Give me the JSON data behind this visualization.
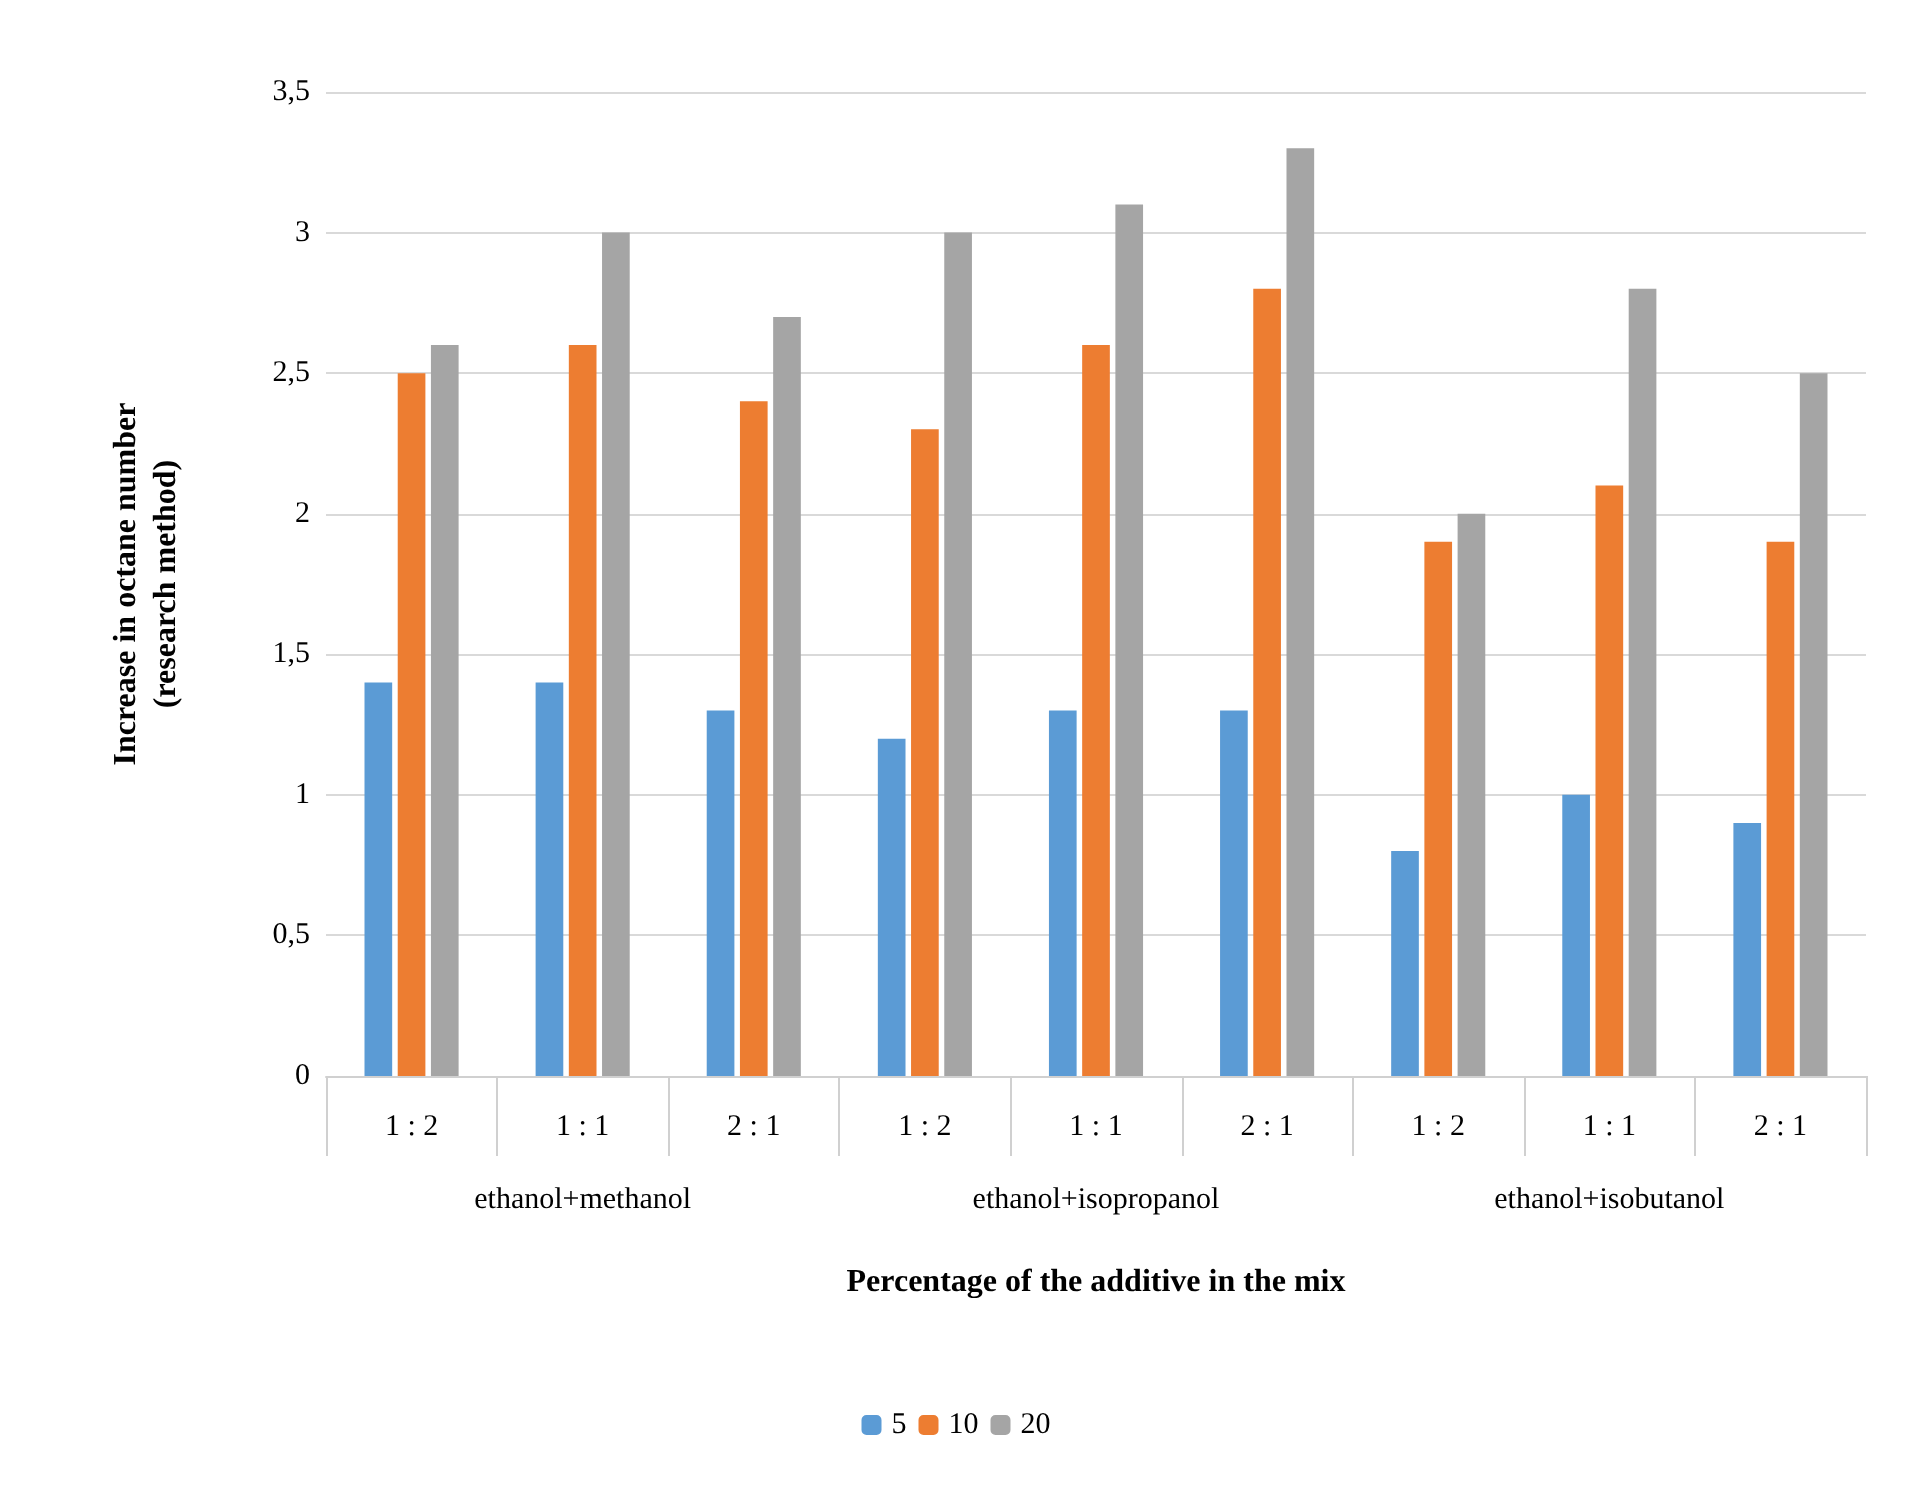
{
  "chart_data": {
    "type": "bar",
    "xlabel": "Percentage of the additive in the mix",
    "ylabel": "Increase in octane number\n(research method)",
    "categories": [
      "1 : 2",
      "1 : 1",
      "2 : 1",
      "1 : 2",
      "1 : 1",
      "2 : 1",
      "1 : 2",
      "1 : 1",
      "2 : 1"
    ],
    "annotations": [
      "ethanol+methanol",
      "ethanol+isopropanol",
      "ethanol+isobutanol"
    ],
    "series": [
      {
        "name": "5",
        "color": "#5b9bd5",
        "values": [
          1.4,
          1.4,
          1.3,
          1.2,
          1.3,
          1.3,
          0.8,
          1.0,
          0.9
        ]
      },
      {
        "name": "10",
        "color": "#ed7d31",
        "values": [
          2.5,
          2.6,
          2.4,
          2.3,
          2.6,
          2.8,
          1.9,
          2.1,
          1.9
        ]
      },
      {
        "name": "20",
        "color": "#a5a5a5",
        "values": [
          2.6,
          3.0,
          2.7,
          3.0,
          3.1,
          3.3,
          2.0,
          2.8,
          2.5
        ]
      }
    ],
    "ylim": [
      0,
      3.5
    ],
    "yticks": [
      0,
      {
        "value": 0.5,
        "label": "0,5"
      },
      1,
      {
        "value": 1.5,
        "label": "1,5"
      },
      2,
      {
        "value": 2.5,
        "label": "2,5"
      },
      3,
      {
        "value": 3.5,
        "label": "3,5"
      }
    ],
    "grid": true,
    "legend": "bottom"
  }
}
